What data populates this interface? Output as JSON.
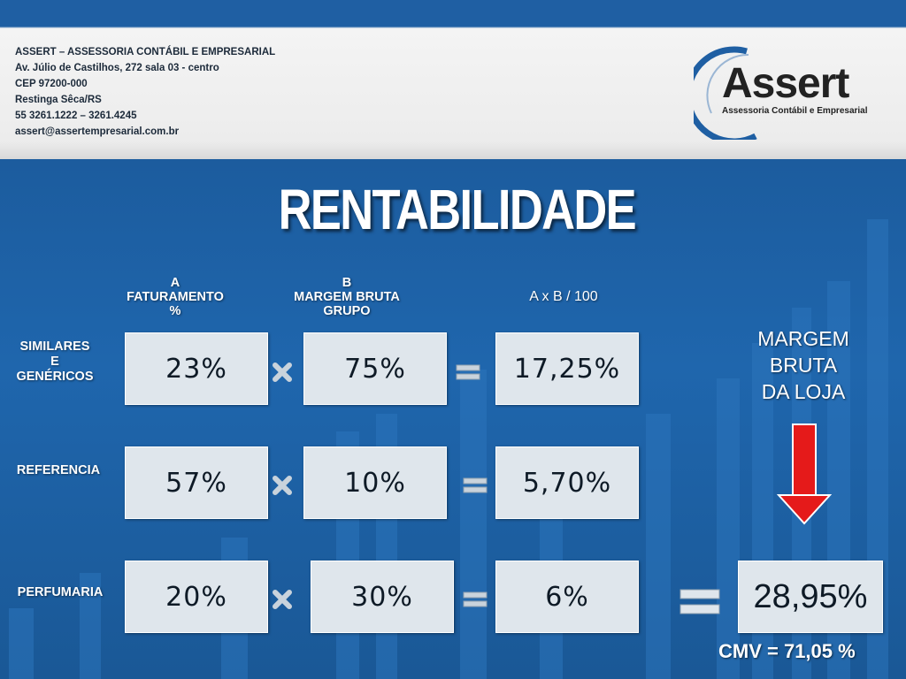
{
  "header": {
    "address_lines": [
      "ASSERT – ASSESSORIA CONTÁBIL E EMPRESARIAL",
      "Av. Júlio de Castilhos, 272 sala 03 - centro",
      "CEP 97200-000",
      "Restinga Sêca/RS",
      "55 3261.1222 – 3261.4245",
      "assert@assertempresarial.com.br"
    ],
    "logo_name": "Assert",
    "logo_tagline": "Assessoria Contábil e Empresarial"
  },
  "title": "RENTABILIDADE",
  "columns": {
    "a": {
      "letter": "A",
      "line1": "FATURAMENTO",
      "line2": "%"
    },
    "b": {
      "letter": "B",
      "line1": "MARGEM BRUTA",
      "line2": "GRUPO"
    },
    "c": {
      "label": "A x B / 100"
    }
  },
  "rows": [
    {
      "label_lines": [
        "SIMILARES",
        "E",
        "GENÉRICOS"
      ],
      "a": "23%",
      "b": "75%",
      "result": "17,25%"
    },
    {
      "label_lines": [
        "REFERENCIA"
      ],
      "a": "57%",
      "b": "10%",
      "result": "5,70%"
    },
    {
      "label_lines": [
        "PERFUMARIA"
      ],
      "a": "20%",
      "b": "30%",
      "result": "6%"
    }
  ],
  "summary": {
    "label_lines": [
      "MARGEM",
      "BRUTA",
      "DA LOJA"
    ],
    "total": "28,95%",
    "cmv": "CMV = 71,05 %"
  },
  "icons": [
    "multiply-icon",
    "equals-icon",
    "down-arrow-icon",
    "logo-swoosh-icon"
  ],
  "colors": {
    "background": "#1f5fa3",
    "box": "#dfe6ec",
    "arrow": "#e51a1a",
    "operator": "#c9d3dc"
  }
}
